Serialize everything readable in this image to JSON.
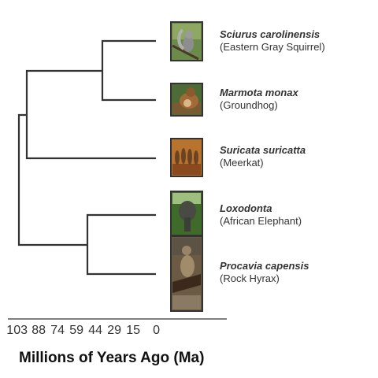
{
  "taxa": [
    {
      "scientific": "Sciurus carolinensis",
      "common": "(Eastern Gray Squirrel)",
      "picture": "gray-squirrel"
    },
    {
      "scientific": "Marmota monax",
      "common": "(Groundhog)",
      "picture": "groundhog"
    },
    {
      "scientific": "Suricata suricatta",
      "common": "(Meerkat)",
      "picture": "meerkats"
    },
    {
      "scientific": "Loxodonta",
      "common": "(African Elephant)",
      "picture": "elephant"
    },
    {
      "scientific": "Procavia capensis",
      "common": "(Rock Hyrax)",
      "picture": "rock-hyrax"
    }
  ],
  "axis": {
    "label": "Millions of Years Ago (Ma)",
    "ticks": [
      "103",
      "88",
      "74",
      "59",
      "44",
      "29",
      "15",
      "0"
    ]
  },
  "colors": {
    "branch": "#333333",
    "text": "#333333"
  }
}
